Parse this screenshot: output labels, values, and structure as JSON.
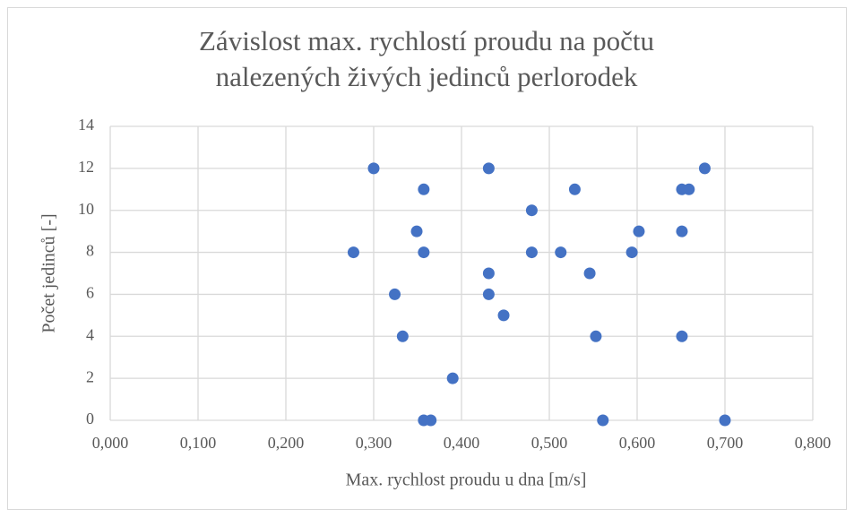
{
  "chart_data": {
    "type": "scatter",
    "title": "Závislost max. rychlostí proudu na počtu nalezených živých jedinců perlorodek",
    "x_label": "Max. rychlost proudu u dna [m/s]",
    "y_label": "Počet  jedinců [-]",
    "color": "#4472c4",
    "grid": true,
    "xlim": [
      0,
      0.8
    ],
    "xticks": [
      {
        "value": 0,
        "label": "0,000"
      },
      {
        "value": 0.1,
        "label": "0,100"
      },
      {
        "value": 0.2,
        "label": "0,200"
      },
      {
        "value": 0.3,
        "label": "0,300"
      },
      {
        "value": 0.4,
        "label": "0,400"
      },
      {
        "value": 0.5,
        "label": "0,500"
      },
      {
        "value": 0.6,
        "label": "0,600"
      },
      {
        "value": 0.7,
        "label": "0,700"
      },
      {
        "value": 0.8,
        "label": "0,800"
      }
    ],
    "ylim": [
      0,
      14
    ],
    "yticks": [
      0,
      2,
      4,
      6,
      8,
      10,
      12,
      14
    ],
    "x": [
      0.277,
      0.3,
      0.324,
      0.333,
      0.349,
      0.357,
      0.357,
      0.357,
      0.365,
      0.39,
      0.431,
      0.431,
      0.431,
      0.448,
      0.48,
      0.48,
      0.513,
      0.529,
      0.546,
      0.553,
      0.561,
      0.594,
      0.602,
      0.651,
      0.651,
      0.651,
      0.659,
      0.677,
      0.7
    ],
    "values": [
      8,
      12,
      6,
      4,
      9,
      11,
      8,
      0,
      0,
      2,
      12,
      7,
      6,
      5,
      10,
      8,
      8,
      11,
      7,
      4,
      0,
      8,
      9,
      11,
      9,
      4,
      11,
      12,
      0
    ]
  }
}
